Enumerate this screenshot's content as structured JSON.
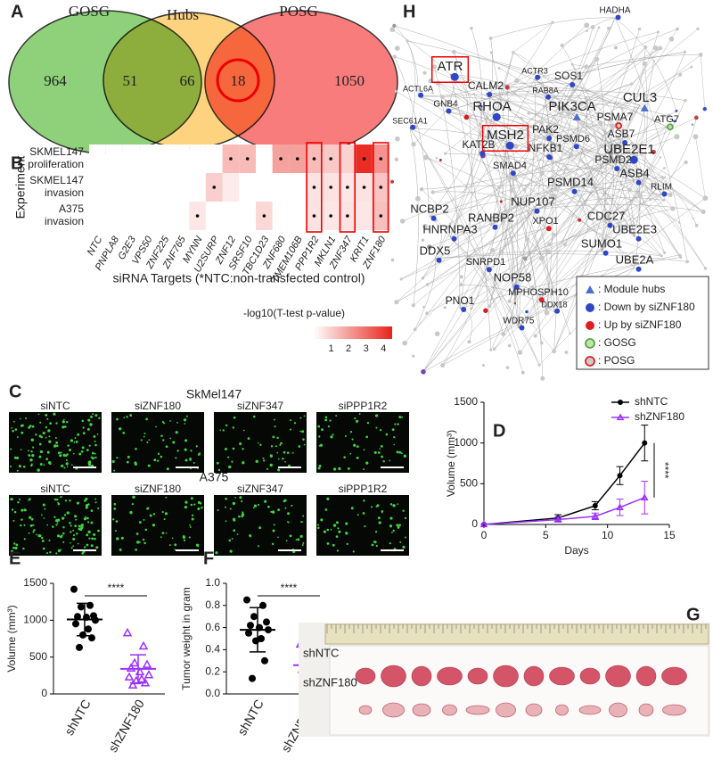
{
  "panel_a": {
    "label": "A",
    "sets": [
      "GOSG",
      "Hubs",
      "POSG"
    ],
    "counts": [
      964,
      51,
      66,
      18,
      1050
    ]
  },
  "panel_b": {
    "label": "B",
    "y_label": "Experiment",
    "x_label": "siRNA Targets (*NTC:non-transfected control)",
    "rows": [
      [
        "SKMEL147",
        "proliferation"
      ],
      [
        "SKMEL147",
        "invasion"
      ],
      [
        "A375",
        "invasion"
      ]
    ],
    "columns": [
      "NTC",
      "PNPLA8",
      "G2E3",
      "VPS50",
      "ZNF225",
      "ZNF765",
      "MYNN",
      "U2SURP",
      "ZNF12",
      "SRSF10",
      "TBC1D23",
      "ZNF680",
      "TMEM106B",
      "PPP1R2",
      "MKLN1",
      "ZNF347",
      "KRIT1",
      "ZNF180"
    ],
    "values": [
      [
        0,
        0,
        0,
        0,
        0,
        0,
        0,
        0,
        1.4,
        1.4,
        0,
        1.9,
        1.9,
        1.4,
        1.1,
        0.9,
        4.3,
        2.2
      ],
      [
        0,
        0,
        0,
        0,
        0,
        0,
        0,
        1.0,
        0.4,
        0,
        0,
        0,
        0,
        0.6,
        0.6,
        0.5,
        0.6,
        1.2
      ],
      [
        0,
        0,
        0,
        0,
        0,
        0,
        0.5,
        0,
        0,
        0,
        0.8,
        0,
        0,
        0.6,
        0.5,
        0.6,
        0.5,
        1.3
      ]
    ],
    "significant": [
      [
        8,
        9,
        11,
        12,
        13,
        14,
        16,
        17
      ],
      [
        7,
        13,
        14,
        15,
        16,
        17
      ],
      [
        6,
        10,
        13,
        14,
        15,
        17
      ]
    ],
    "highlight_columns": [
      13,
      15,
      17
    ],
    "colorbar": {
      "title": "-log10(T-test p-value)",
      "range": [
        0,
        4.5
      ],
      "ticks": [
        1,
        2,
        3,
        4
      ],
      "color": "#e8231b"
    }
  },
  "panel_c": {
    "label": "C",
    "groups": [
      {
        "title": "SkMel147",
        "images": [
          "siNTC",
          "siZNF180",
          "siZNF347",
          "siPPP1R2"
        ]
      },
      {
        "title": "A375",
        "images": [
          "siNTC",
          "siZNF180",
          "siZNF347",
          "siPPP1R2"
        ]
      }
    ]
  },
  "panel_d": {
    "label": "D",
    "type": "line",
    "x_label": "Days",
    "y_label": "Volume (mm³)",
    "x": [
      0,
      6,
      9,
      11,
      13
    ],
    "series": [
      {
        "name": "shNTC",
        "color": "#000000",
        "marker": "circle",
        "values": [
          0,
          80,
          230,
          600,
          1000
        ],
        "errors": [
          0,
          40,
          50,
          110,
          220
        ]
      },
      {
        "name": "shZNF180",
        "color": "#9b30ff",
        "marker": "triangle",
        "values": [
          0,
          60,
          100,
          210,
          330
        ],
        "errors": [
          0,
          30,
          40,
          100,
          200
        ]
      }
    ],
    "xlim": [
      0,
      15
    ],
    "ylim": [
      0,
      1500
    ],
    "xticks": [
      0,
      5,
      10,
      15
    ],
    "yticks": [
      0,
      500,
      1000,
      1500
    ],
    "annotation": "****"
  },
  "panel_e": {
    "label": "E",
    "type": "dot",
    "y_label": "Volume (mm³)",
    "ylim": [
      0,
      1500
    ],
    "yticks": [
      0,
      500,
      1000,
      1500
    ],
    "series": [
      {
        "name": "shNTC",
        "color": "#000000",
        "marker": "circle",
        "values": [
          1420,
          1200,
          1180,
          1060,
          1050,
          1040,
          1000,
          950,
          880,
          800,
          760,
          630
        ],
        "mean": 1010,
        "sd": 220
      },
      {
        "name": "shZNF180",
        "color": "#9b30ff",
        "marker": "triangle",
        "values": [
          830,
          650,
          420,
          400,
          350,
          300,
          260,
          230,
          200,
          180,
          150,
          120
        ],
        "mean": 340,
        "sd": 190
      }
    ],
    "annotation": "****"
  },
  "panel_f": {
    "label": "F",
    "type": "dot",
    "y_label": "Tumor weight in gram",
    "ylim": [
      0,
      1.0
    ],
    "yticks": [
      {
        "value": 0,
        "label": "0.0"
      },
      0.2,
      0.4,
      0.6,
      0.8,
      {
        "value": 1,
        "label": "1.0"
      }
    ],
    "series": [
      {
        "name": "shNTC",
        "color": "#000000",
        "marker": "circle",
        "values": [
          0.85,
          0.8,
          0.7,
          0.65,
          0.62,
          0.6,
          0.58,
          0.55,
          0.5,
          0.48,
          0.3,
          0.14
        ],
        "mean": 0.58,
        "sd": 0.2
      },
      {
        "name": "shZNF180",
        "color": "#9b30ff",
        "marker": "triangle",
        "values": [
          0.45,
          0.4,
          0.38,
          0.32,
          0.3,
          0.28,
          0.25,
          0.22,
          0.2,
          0.15,
          0.1,
          0.05
        ],
        "mean": 0.26,
        "sd": 0.12
      }
    ],
    "annotation": "****"
  },
  "panel_g": {
    "label": "G",
    "rows": [
      "shNTC",
      "shZNF180"
    ]
  },
  "panel_h": {
    "label": "H",
    "nodes": [
      {
        "label": "ATR",
        "kind": "down",
        "boxed": true
      },
      {
        "label": "CALM2",
        "kind": "down"
      },
      {
        "label": "RHOA",
        "kind": "down"
      },
      {
        "label": "SOS1",
        "kind": "down"
      },
      {
        "label": "PIK3CA",
        "kind": "hub"
      },
      {
        "label": "CUL3",
        "kind": "hub"
      },
      {
        "label": "PSMA7",
        "kind": "posg"
      },
      {
        "label": "ATG7",
        "kind": "gosg"
      },
      {
        "label": "ASB7",
        "kind": "down"
      },
      {
        "label": "PAK2",
        "kind": "down"
      },
      {
        "label": "MSH2",
        "kind": "down",
        "boxed": true
      },
      {
        "label": "UBE2E1",
        "kind": "down"
      },
      {
        "label": "KAT2B",
        "kind": "down"
      },
      {
        "label": "NFKB1",
        "kind": "down"
      },
      {
        "label": "PSMD6",
        "kind": "down"
      },
      {
        "label": "PSMD2",
        "kind": "down"
      },
      {
        "label": "ASB4",
        "kind": "down"
      },
      {
        "label": "SMAD4",
        "kind": "down"
      },
      {
        "label": "RLIM",
        "kind": "down"
      },
      {
        "label": "PSMD14",
        "kind": "down"
      },
      {
        "label": "NUP107",
        "kind": "down"
      },
      {
        "label": "NCBP2",
        "kind": "down"
      },
      {
        "label": "RANBP2",
        "kind": "down"
      },
      {
        "label": "XPO1",
        "kind": "up"
      },
      {
        "label": "CDC27",
        "kind": "down"
      },
      {
        "label": "UBE2E3",
        "kind": "down"
      },
      {
        "label": "HNRNPA3",
        "kind": "down"
      },
      {
        "label": "SUMO1",
        "kind": "down"
      },
      {
        "label": "DDX5",
        "kind": "down"
      },
      {
        "label": "UBE2A",
        "kind": "down"
      },
      {
        "label": "NOP58",
        "kind": "down"
      },
      {
        "label": "MPHOSPH10",
        "kind": "up"
      },
      {
        "label": "PNO1",
        "kind": "down"
      },
      {
        "label": "GNB4",
        "kind": "down"
      },
      {
        "label": "SEC61A1",
        "kind": "down"
      },
      {
        "label": "HADHA",
        "kind": "down"
      },
      {
        "label": "RAB8A",
        "kind": "down"
      },
      {
        "label": "ACTR3",
        "kind": "down"
      },
      {
        "label": "ACTL6A",
        "kind": "down"
      },
      {
        "label": "SNRPD1",
        "kind": "down"
      },
      {
        "label": "WDR75",
        "kind": "down"
      },
      {
        "label": "DDX18",
        "kind": "down"
      }
    ],
    "legend": [
      {
        "kind": "hub",
        "label": ": Module hubs"
      },
      {
        "kind": "down",
        "label": ": Down by siZNF180"
      },
      {
        "kind": "up",
        "label": ": Up by siZNF180"
      },
      {
        "kind": "gosg",
        "label": ": GOSG"
      },
      {
        "kind": "posg",
        "label": ": POSG"
      }
    ]
  }
}
